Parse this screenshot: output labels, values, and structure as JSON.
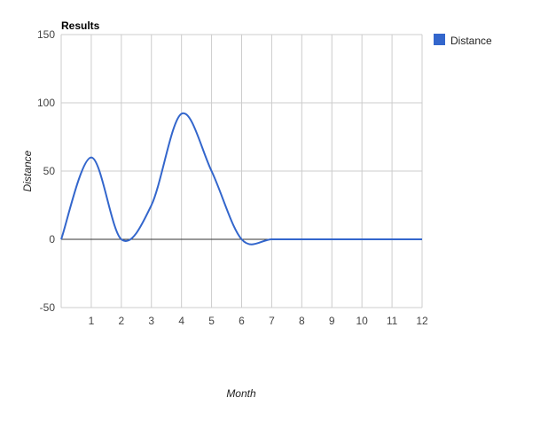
{
  "chart_data": {
    "type": "line",
    "title": "Results",
    "xlabel": "Month",
    "ylabel": "Distance",
    "x": [
      0,
      1,
      2,
      3,
      4,
      5,
      6,
      7,
      8,
      9,
      10,
      11,
      12
    ],
    "x_ticks": [
      "1",
      "2",
      "3",
      "4",
      "5",
      "6",
      "7",
      "8",
      "9",
      "10",
      "11",
      "12"
    ],
    "y_ticks": [
      "150",
      "100",
      "50",
      "0",
      "-50"
    ],
    "ylim": [
      -50,
      150
    ],
    "xlim": [
      0,
      12
    ],
    "series": [
      {
        "name": "Distance",
        "color": "#3366cc",
        "values": [
          0,
          60,
          0,
          25,
          92,
          50,
          0,
          0,
          0,
          0,
          0,
          0,
          0
        ]
      }
    ],
    "legend": {
      "position": "right",
      "label": "Distance"
    },
    "grid": true
  }
}
